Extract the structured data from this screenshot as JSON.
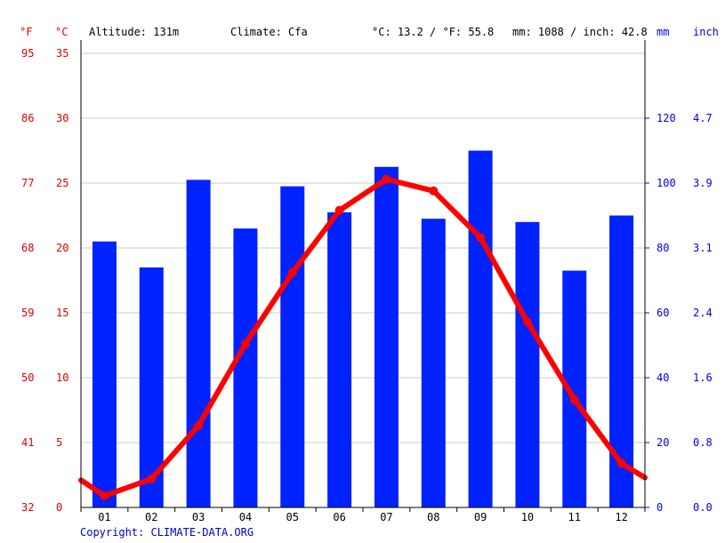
{
  "header": {
    "f_unit": "°F",
    "c_unit": "°C",
    "altitude": "Altitude: 131m",
    "climate": "Climate: Cfa",
    "temp_avg": "°C: 13.2 / °F: 55.8",
    "precip_avg": "mm: 1088 / inch: 42.8",
    "mm_unit": "mm",
    "inch_unit": "inch"
  },
  "copyright": "Copyright: CLIMATE-DATA.ORG",
  "colors": {
    "bar": "#0022ff",
    "line": "#ff0000",
    "grid": "#cccccc",
    "left_axis": "#dd0000",
    "right_axis": "#0000ee"
  },
  "chart_data": {
    "type": "bar+line",
    "categories": [
      "01",
      "02",
      "03",
      "04",
      "05",
      "06",
      "07",
      "08",
      "09",
      "10",
      "11",
      "12"
    ],
    "series": [
      {
        "type": "bar",
        "axis": "mm",
        "values": [
          82,
          74,
          101,
          86,
          99,
          91,
          105,
          89,
          110,
          88,
          73,
          90
        ]
      },
      {
        "type": "line",
        "axis": "°C",
        "values": [
          0.9,
          2.2,
          6.3,
          12.6,
          18.1,
          22.9,
          25.3,
          24.4,
          20.8,
          14.3,
          8.3,
          3.4
        ]
      }
    ],
    "line_start_c": 2.1,
    "line_end_c": 2.3,
    "left_c_ticks": [
      "0",
      "5",
      "10",
      "15",
      "20",
      "25",
      "30",
      "35"
    ],
    "left_f_ticks": [
      "32",
      "41",
      "50",
      "59",
      "68",
      "77",
      "86",
      "95"
    ],
    "right_mm_ticks": [
      "0",
      "20",
      "40",
      "60",
      "80",
      "100",
      "120"
    ],
    "right_inch_ticks": [
      "0.0",
      "0.8",
      "1.6",
      "2.4",
      "3.1",
      "3.9",
      "4.7"
    ],
    "ylim_c": [
      0,
      35
    ],
    "ylim_mm": [
      0,
      140
    ],
    "grid": true
  }
}
